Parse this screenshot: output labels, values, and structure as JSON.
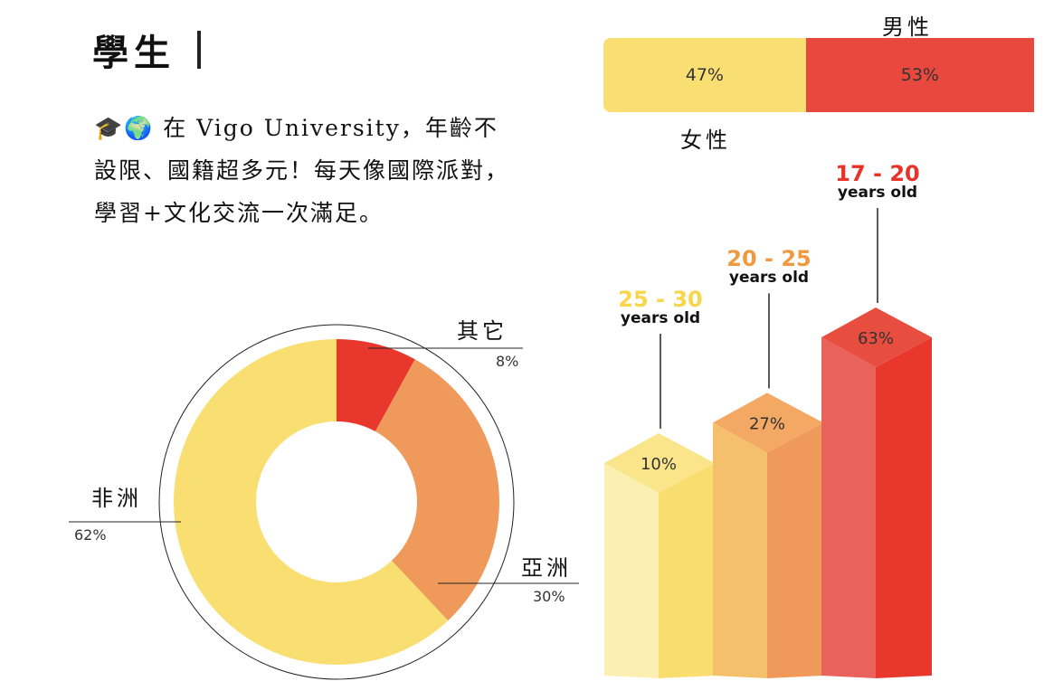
{
  "header": {
    "title": "學生"
  },
  "intro": {
    "icons": [
      "graduation-cap-icon",
      "globe-icon"
    ],
    "text": "在 Vigo University，年齡不設限、國籍超多元！每天像國際派對，學習+文化交流一次滿足。"
  },
  "chart_data": [
    {
      "type": "bar",
      "orientation": "horizontal-stacked",
      "series": [
        {
          "name": "女性",
          "value": 47,
          "label": "47%",
          "color": "#f9df72"
        },
        {
          "name": "男性",
          "value": 53,
          "label": "53%",
          "color": "#e8483d"
        }
      ]
    },
    {
      "type": "pie",
      "style": "donut",
      "slices": [
        {
          "name": "其它",
          "value": 8,
          "label": "8%",
          "color": "#e8382d"
        },
        {
          "name": "亞洲",
          "value": 30,
          "label": "30%",
          "color": "#ef9a5a"
        },
        {
          "name": "非洲",
          "value": 62,
          "label": "62%",
          "color": "#f9df72"
        }
      ]
    },
    {
      "type": "bar",
      "style": "3d",
      "categories": [
        {
          "range": "25 - 30",
          "sub": "years old"
        },
        {
          "range": "20 - 25",
          "sub": "years old"
        },
        {
          "range": "17 - 20",
          "sub": "years old"
        }
      ],
      "values": [
        10,
        27,
        63
      ],
      "labels": [
        "10%",
        "27%",
        "63%"
      ],
      "colors": [
        {
          "title": "#f8d54a",
          "front": "#fbefb2",
          "side": "#f9dd6f",
          "top": "#fae58a"
        },
        {
          "title": "#ef9a40",
          "front": "#f5c06c",
          "side": "#ef9a5a",
          "top": "#f3a864"
        },
        {
          "title": "#e8322a",
          "front": "#ea625c",
          "side": "#e8382d",
          "top": "#e84e40"
        }
      ]
    }
  ]
}
